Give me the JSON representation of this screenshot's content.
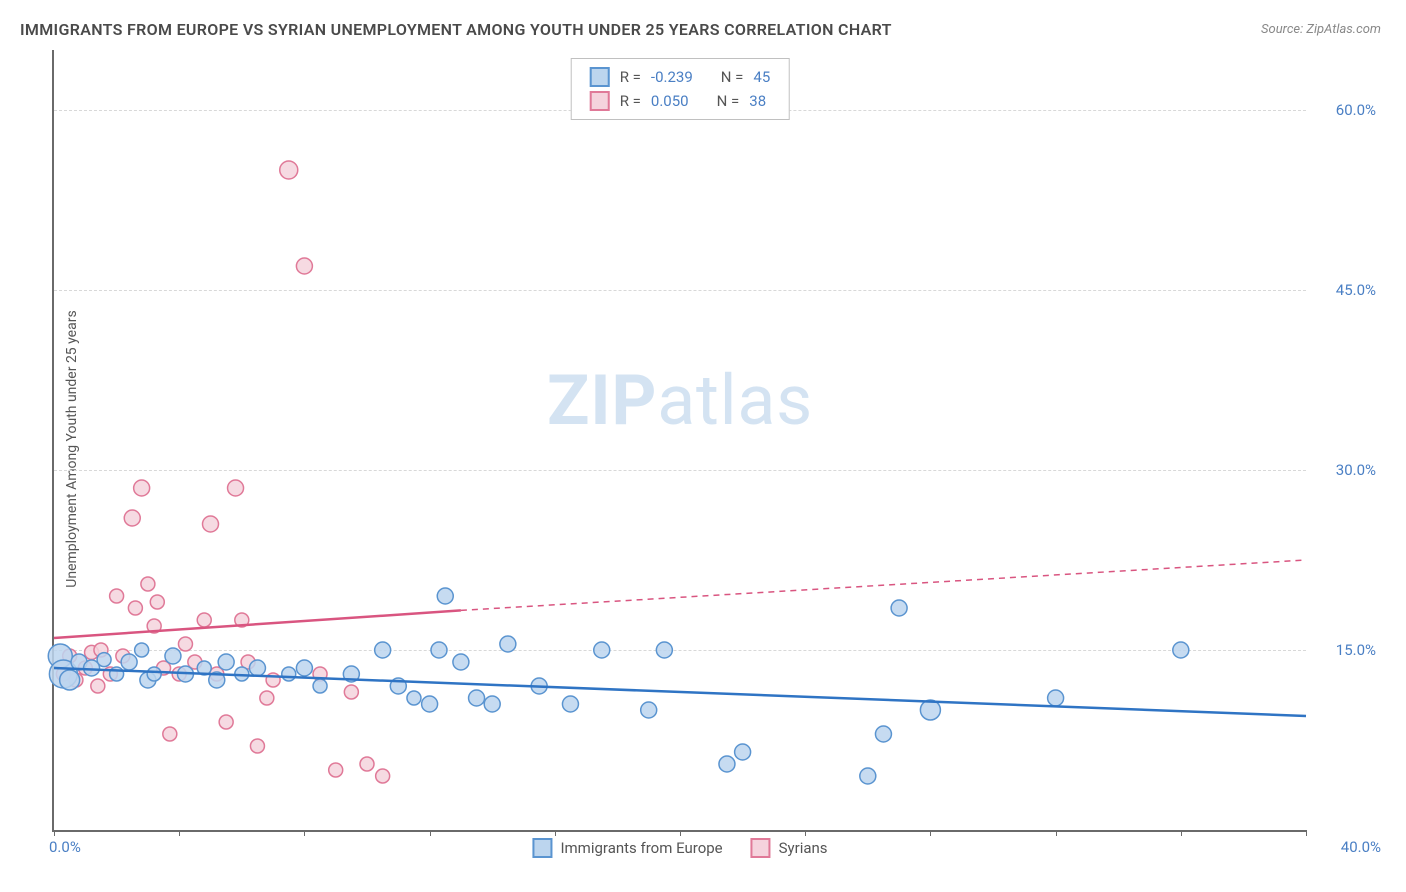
{
  "title": "IMMIGRANTS FROM EUROPE VS SYRIAN UNEMPLOYMENT AMONG YOUTH UNDER 25 YEARS CORRELATION CHART",
  "source": "Source: ZipAtlas.com",
  "ylabel": "Unemployment Among Youth under 25 years",
  "watermark": {
    "prefix": "ZIP",
    "suffix": "atlas"
  },
  "chart": {
    "type": "scatter",
    "xlim": [
      0,
      40
    ],
    "ylim": [
      0,
      65
    ],
    "x_ticks": [
      0,
      4,
      8,
      12,
      16,
      20,
      24,
      28,
      32,
      36,
      40
    ],
    "x_tick_labels": {
      "left": "0.0%",
      "right": "40.0%"
    },
    "y_gridlines": [
      15,
      30,
      45,
      60
    ],
    "y_tick_labels": [
      "15.0%",
      "30.0%",
      "45.0%",
      "60.0%"
    ],
    "background_color": "#ffffff",
    "grid_color": "#d8d8d8",
    "axis_color": "#6a6a6a",
    "tick_label_color": "#4a7fc4",
    "series": [
      {
        "name": "Immigrants from Europe",
        "fill": "#bcd5ee",
        "stroke": "#5a94d0",
        "line_color": "#2f74c4",
        "r_label": "R =",
        "r_value": "-0.239",
        "n_label": "N =",
        "n_value": "45",
        "trend": {
          "x1": 0,
          "y1": 13.5,
          "x2_solid": 40,
          "y2_solid": 9.5
        },
        "points": [
          {
            "x": 0.2,
            "y": 14.5,
            "r": 12
          },
          {
            "x": 0.3,
            "y": 13.0,
            "r": 14
          },
          {
            "x": 0.5,
            "y": 12.5,
            "r": 10
          },
          {
            "x": 0.8,
            "y": 14.0,
            "r": 8
          },
          {
            "x": 1.2,
            "y": 13.5,
            "r": 8
          },
          {
            "x": 1.6,
            "y": 14.2,
            "r": 7
          },
          {
            "x": 2.0,
            "y": 13.0,
            "r": 7
          },
          {
            "x": 2.4,
            "y": 14.0,
            "r": 8
          },
          {
            "x": 2.8,
            "y": 15.0,
            "r": 7
          },
          {
            "x": 3.0,
            "y": 12.5,
            "r": 8
          },
          {
            "x": 3.2,
            "y": 13.0,
            "r": 7
          },
          {
            "x": 3.8,
            "y": 14.5,
            "r": 8
          },
          {
            "x": 4.2,
            "y": 13.0,
            "r": 8
          },
          {
            "x": 4.8,
            "y": 13.5,
            "r": 7
          },
          {
            "x": 5.2,
            "y": 12.5,
            "r": 8
          },
          {
            "x": 5.5,
            "y": 14.0,
            "r": 8
          },
          {
            "x": 6.0,
            "y": 13.0,
            "r": 7
          },
          {
            "x": 6.5,
            "y": 13.5,
            "r": 8
          },
          {
            "x": 7.5,
            "y": 13.0,
            "r": 7
          },
          {
            "x": 8.0,
            "y": 13.5,
            "r": 8
          },
          {
            "x": 8.5,
            "y": 12.0,
            "r": 7
          },
          {
            "x": 9.5,
            "y": 13.0,
            "r": 8
          },
          {
            "x": 10.5,
            "y": 15.0,
            "r": 8
          },
          {
            "x": 11.0,
            "y": 12.0,
            "r": 8
          },
          {
            "x": 11.5,
            "y": 11.0,
            "r": 7
          },
          {
            "x": 12.0,
            "y": 10.5,
            "r": 8
          },
          {
            "x": 12.3,
            "y": 15.0,
            "r": 8
          },
          {
            "x": 12.5,
            "y": 19.5,
            "r": 8
          },
          {
            "x": 13.0,
            "y": 14.0,
            "r": 8
          },
          {
            "x": 13.5,
            "y": 11.0,
            "r": 8
          },
          {
            "x": 14.0,
            "y": 10.5,
            "r": 8
          },
          {
            "x": 14.5,
            "y": 15.5,
            "r": 8
          },
          {
            "x": 15.5,
            "y": 12.0,
            "r": 8
          },
          {
            "x": 16.5,
            "y": 10.5,
            "r": 8
          },
          {
            "x": 17.5,
            "y": 15.0,
            "r": 8
          },
          {
            "x": 19.0,
            "y": 10.0,
            "r": 8
          },
          {
            "x": 19.5,
            "y": 15.0,
            "r": 8
          },
          {
            "x": 21.5,
            "y": 5.5,
            "r": 8
          },
          {
            "x": 22.0,
            "y": 6.5,
            "r": 8
          },
          {
            "x": 26.0,
            "y": 4.5,
            "r": 8
          },
          {
            "x": 26.5,
            "y": 8.0,
            "r": 8
          },
          {
            "x": 27.0,
            "y": 18.5,
            "r": 8
          },
          {
            "x": 28.0,
            "y": 10.0,
            "r": 10
          },
          {
            "x": 32.0,
            "y": 11.0,
            "r": 8
          },
          {
            "x": 36.0,
            "y": 15.0,
            "r": 8
          }
        ]
      },
      {
        "name": "Syrians",
        "fill": "#f5d3dd",
        "stroke": "#e07998",
        "line_color": "#d95580",
        "r_label": "R =",
        "r_value": "0.050",
        "n_label": "N =",
        "n_value": "38",
        "trend": {
          "x1": 0,
          "y1": 16.0,
          "x2_solid": 13,
          "y2_solid": 18.3,
          "x2_dashed": 40,
          "y2_dashed": 22.5
        },
        "points": [
          {
            "x": 0.3,
            "y": 13.0,
            "r": 7
          },
          {
            "x": 0.5,
            "y": 14.5,
            "r": 7
          },
          {
            "x": 0.7,
            "y": 12.5,
            "r": 7
          },
          {
            "x": 1.0,
            "y": 13.5,
            "r": 7
          },
          {
            "x": 1.2,
            "y": 14.8,
            "r": 7
          },
          {
            "x": 1.4,
            "y": 12.0,
            "r": 7
          },
          {
            "x": 1.5,
            "y": 15.0,
            "r": 7
          },
          {
            "x": 1.8,
            "y": 13.0,
            "r": 7
          },
          {
            "x": 2.0,
            "y": 19.5,
            "r": 7
          },
          {
            "x": 2.2,
            "y": 14.5,
            "r": 7
          },
          {
            "x": 2.5,
            "y": 26.0,
            "r": 8
          },
          {
            "x": 2.6,
            "y": 18.5,
            "r": 7
          },
          {
            "x": 2.8,
            "y": 28.5,
            "r": 8
          },
          {
            "x": 3.0,
            "y": 20.5,
            "r": 7
          },
          {
            "x": 3.2,
            "y": 17.0,
            "r": 7
          },
          {
            "x": 3.3,
            "y": 19.0,
            "r": 7
          },
          {
            "x": 3.5,
            "y": 13.5,
            "r": 7
          },
          {
            "x": 3.7,
            "y": 8.0,
            "r": 7
          },
          {
            "x": 4.0,
            "y": 13.0,
            "r": 7
          },
          {
            "x": 4.2,
            "y": 15.5,
            "r": 7
          },
          {
            "x": 4.5,
            "y": 14.0,
            "r": 7
          },
          {
            "x": 4.8,
            "y": 17.5,
            "r": 7
          },
          {
            "x": 5.0,
            "y": 25.5,
            "r": 8
          },
          {
            "x": 5.2,
            "y": 13.0,
            "r": 7
          },
          {
            "x": 5.5,
            "y": 9.0,
            "r": 7
          },
          {
            "x": 5.8,
            "y": 28.5,
            "r": 8
          },
          {
            "x": 6.0,
            "y": 17.5,
            "r": 7
          },
          {
            "x": 6.2,
            "y": 14.0,
            "r": 7
          },
          {
            "x": 6.5,
            "y": 7.0,
            "r": 7
          },
          {
            "x": 6.8,
            "y": 11.0,
            "r": 7
          },
          {
            "x": 7.0,
            "y": 12.5,
            "r": 7
          },
          {
            "x": 7.5,
            "y": 55.0,
            "r": 9
          },
          {
            "x": 8.0,
            "y": 47.0,
            "r": 8
          },
          {
            "x": 8.5,
            "y": 13.0,
            "r": 7
          },
          {
            "x": 9.0,
            "y": 5.0,
            "r": 7
          },
          {
            "x": 9.5,
            "y": 11.5,
            "r": 7
          },
          {
            "x": 10.0,
            "y": 5.5,
            "r": 7
          },
          {
            "x": 10.5,
            "y": 4.5,
            "r": 7
          }
        ]
      }
    ],
    "legend": {
      "items": [
        {
          "label": "Immigrants from Europe",
          "fill": "#bcd5ee",
          "stroke": "#5a94d0"
        },
        {
          "label": "Syrians",
          "fill": "#f5d3dd",
          "stroke": "#e07998"
        }
      ]
    }
  }
}
